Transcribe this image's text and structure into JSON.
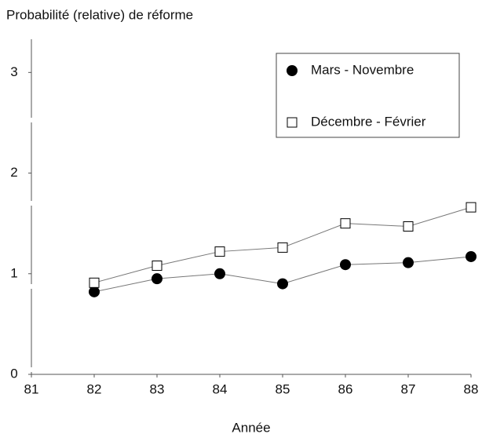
{
  "chart_data": {
    "type": "line",
    "title": "Probabilité (relative) de réforme",
    "x_label": "Année",
    "x": [
      82,
      83,
      84,
      85,
      86,
      87,
      88
    ],
    "series": [
      {
        "name": "Mars - Novembre",
        "color": "#000000",
        "marker": "circle",
        "values": [
          0.82,
          0.95,
          1.0,
          0.9,
          1.09,
          1.11,
          1.17
        ]
      },
      {
        "name": "Décembre - Février",
        "color": "#000000",
        "marker": "square",
        "values": [
          0.91,
          1.08,
          1.22,
          1.26,
          1.5,
          1.47,
          1.66
        ]
      }
    ],
    "xlim": [
      81,
      88
    ],
    "xticks": [
      81,
      82,
      83,
      84,
      85,
      86,
      87,
      88
    ],
    "ylim": [
      0,
      3.33
    ],
    "yticks": [
      0,
      1,
      2,
      3
    ],
    "grid": false,
    "legend": "upper right"
  }
}
